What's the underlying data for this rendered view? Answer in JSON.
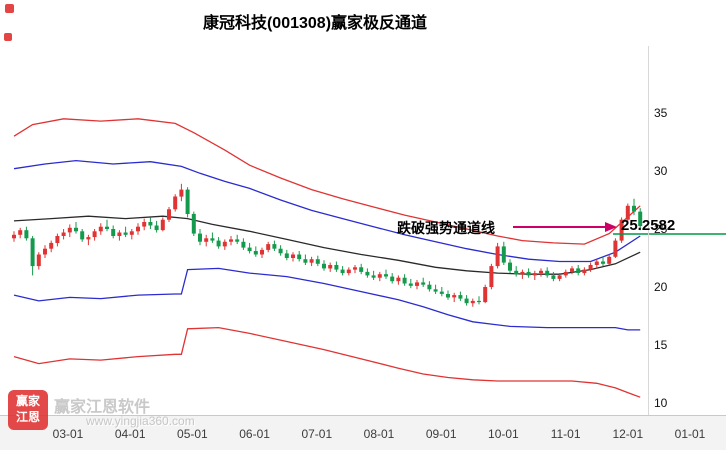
{
  "window": {
    "title": "康冠科技(001308)赢家极反通道"
  },
  "annotation": {
    "label": "跌破强势通道线",
    "price": "25.2582"
  },
  "watermark": {
    "brand": "赢家江恩软件",
    "site": "www.yingjia360.com",
    "logo_top": "赢家",
    "logo_bottom": "江恩"
  },
  "chart_data": {
    "type": "candlestick",
    "title": "康冠科技(001308)赢家极反通道",
    "stock_name": "康冠科技",
    "symbol": "001308",
    "indicator": "赢家极反通道",
    "x_tick_labels": [
      "03-01",
      "04-01",
      "05-01",
      "06-01",
      "07-01",
      "08-01",
      "09-01",
      "10-01",
      "11-01",
      "12-01",
      "01-01"
    ],
    "y_tick_labels": [
      35,
      30,
      25,
      20,
      15,
      10
    ],
    "ylim": [
      9,
      36.5
    ],
    "grid": false,
    "legend": "none",
    "current_price": 25.2582,
    "colors": {
      "up": "#e03333",
      "down": "#149a4c",
      "channel_outer": "#e03333",
      "channel_inner": "#2b2bd0",
      "channel_mid": "#2a2a2a",
      "current_price_line": "#009944",
      "annotation_arrow": "#cc0066"
    },
    "candles": [
      [
        24.2,
        24.8,
        23.9,
        24.5
      ],
      [
        24.5,
        25.1,
        24.2,
        24.9
      ],
      [
        24.9,
        25.2,
        24.0,
        24.2
      ],
      [
        24.2,
        24.4,
        21.0,
        21.8
      ],
      [
        21.8,
        23.0,
        21.5,
        22.8
      ],
      [
        22.8,
        23.6,
        22.5,
        23.3
      ],
      [
        23.3,
        24.0,
        23.0,
        23.8
      ],
      [
        23.8,
        24.6,
        23.5,
        24.4
      ],
      [
        24.4,
        25.0,
        24.1,
        24.7
      ],
      [
        24.7,
        25.4,
        24.3,
        25.1
      ],
      [
        25.1,
        25.6,
        24.6,
        24.8
      ],
      [
        24.8,
        25.0,
        23.9,
        24.1
      ],
      [
        24.1,
        24.5,
        23.6,
        24.3
      ],
      [
        24.3,
        25.0,
        24.0,
        24.8
      ],
      [
        24.8,
        25.5,
        24.5,
        25.2
      ],
      [
        25.2,
        25.8,
        24.8,
        25.0
      ],
      [
        25.0,
        25.3,
        24.2,
        24.4
      ],
      [
        24.4,
        24.9,
        24.0,
        24.7
      ],
      [
        24.7,
        25.2,
        24.3,
        24.5
      ],
      [
        24.5,
        25.0,
        24.1,
        24.8
      ],
      [
        24.8,
        25.5,
        24.5,
        25.2
      ],
      [
        25.2,
        25.9,
        24.9,
        25.6
      ],
      [
        25.6,
        26.0,
        25.0,
        25.3
      ],
      [
        25.3,
        25.7,
        24.7,
        24.9
      ],
      [
        24.9,
        26.0,
        24.8,
        25.8
      ],
      [
        25.8,
        26.9,
        25.6,
        26.7
      ],
      [
        26.7,
        28.0,
        26.5,
        27.8
      ],
      [
        27.8,
        28.9,
        27.4,
        28.4
      ],
      [
        28.4,
        28.6,
        26.0,
        26.3
      ],
      [
        26.3,
        26.5,
        24.4,
        24.6
      ],
      [
        24.6,
        25.0,
        23.6,
        23.9
      ],
      [
        23.9,
        24.5,
        23.5,
        24.2
      ],
      [
        24.2,
        24.7,
        23.8,
        24.0
      ],
      [
        24.0,
        24.3,
        23.3,
        23.5
      ],
      [
        23.5,
        24.1,
        23.2,
        23.9
      ],
      [
        23.9,
        24.4,
        23.6,
        24.1
      ],
      [
        24.1,
        24.5,
        23.7,
        23.9
      ],
      [
        23.9,
        24.2,
        23.2,
        23.4
      ],
      [
        23.4,
        23.8,
        22.9,
        23.1
      ],
      [
        23.1,
        23.5,
        22.6,
        22.8
      ],
      [
        22.8,
        23.4,
        22.5,
        23.2
      ],
      [
        23.2,
        23.9,
        23.0,
        23.7
      ],
      [
        23.7,
        24.0,
        23.1,
        23.3
      ],
      [
        23.3,
        23.6,
        22.7,
        22.9
      ],
      [
        22.9,
        23.2,
        22.3,
        22.5
      ],
      [
        22.5,
        23.0,
        22.2,
        22.8
      ],
      [
        22.8,
        23.1,
        22.2,
        22.4
      ],
      [
        22.4,
        22.8,
        21.9,
        22.1
      ],
      [
        22.1,
        22.6,
        21.8,
        22.4
      ],
      [
        22.4,
        22.7,
        21.8,
        22.0
      ],
      [
        22.0,
        22.3,
        21.4,
        21.6
      ],
      [
        21.6,
        22.1,
        21.3,
        21.9
      ],
      [
        21.9,
        22.2,
        21.3,
        21.5
      ],
      [
        21.5,
        21.8,
        21.0,
        21.2
      ],
      [
        21.2,
        21.7,
        21.0,
        21.5
      ],
      [
        21.5,
        21.9,
        21.2,
        21.7
      ],
      [
        21.7,
        22.0,
        21.1,
        21.3
      ],
      [
        21.3,
        21.6,
        20.8,
        21.0
      ],
      [
        21.0,
        21.4,
        20.6,
        20.8
      ],
      [
        20.8,
        21.3,
        20.5,
        21.1
      ],
      [
        21.1,
        21.5,
        20.7,
        20.9
      ],
      [
        20.9,
        21.2,
        20.3,
        20.5
      ],
      [
        20.5,
        21.0,
        20.2,
        20.8
      ],
      [
        20.8,
        21.1,
        20.1,
        20.3
      ],
      [
        20.3,
        20.7,
        19.9,
        20.1
      ],
      [
        20.1,
        20.6,
        19.8,
        20.4
      ],
      [
        20.4,
        20.8,
        20.0,
        20.2
      ],
      [
        20.2,
        20.5,
        19.6,
        19.8
      ],
      [
        19.8,
        20.2,
        19.4,
        19.6
      ],
      [
        19.6,
        20.0,
        19.2,
        19.4
      ],
      [
        19.4,
        19.7,
        18.9,
        19.1
      ],
      [
        19.1,
        19.5,
        18.7,
        19.3
      ],
      [
        19.3,
        19.6,
        18.8,
        19.0
      ],
      [
        19.0,
        19.3,
        18.4,
        18.6
      ],
      [
        18.6,
        19.0,
        18.3,
        18.8
      ],
      [
        18.8,
        19.2,
        18.5,
        18.7
      ],
      [
        18.7,
        20.2,
        18.6,
        20.0
      ],
      [
        20.0,
        22.0,
        19.8,
        21.8
      ],
      [
        21.8,
        23.8,
        21.6,
        23.5
      ],
      [
        23.5,
        23.9,
        21.9,
        22.1
      ],
      [
        22.1,
        22.4,
        21.2,
        21.4
      ],
      [
        21.4,
        21.8,
        20.9,
        21.1
      ],
      [
        21.1,
        21.5,
        20.7,
        21.3
      ],
      [
        21.3,
        21.6,
        20.8,
        21.0
      ],
      [
        21.0,
        21.4,
        20.6,
        21.2
      ],
      [
        21.2,
        21.6,
        20.9,
        21.4
      ],
      [
        21.4,
        21.7,
        20.8,
        21.0
      ],
      [
        21.0,
        21.3,
        20.5,
        20.7
      ],
      [
        20.7,
        21.2,
        20.5,
        21.0
      ],
      [
        21.0,
        21.5,
        20.8,
        21.3
      ],
      [
        21.3,
        21.8,
        21.1,
        21.6
      ],
      [
        21.6,
        21.9,
        21.0,
        21.2
      ],
      [
        21.2,
        21.7,
        21.0,
        21.5
      ],
      [
        21.5,
        22.1,
        21.3,
        21.9
      ],
      [
        21.9,
        22.4,
        21.6,
        22.2
      ],
      [
        22.2,
        22.6,
        21.8,
        22.0
      ],
      [
        22.0,
        22.8,
        21.9,
        22.6
      ],
      [
        22.6,
        24.2,
        22.5,
        24.0
      ],
      [
        24.0,
        26.0,
        23.8,
        25.8
      ],
      [
        25.8,
        27.2,
        25.5,
        27.0
      ],
      [
        27.0,
        27.6,
        26.2,
        26.5
      ],
      [
        26.5,
        26.8,
        24.9,
        25.26
      ]
    ],
    "channel_lines": [
      {
        "name": "upper-outer-red",
        "color": "#e03333",
        "points": [
          [
            0,
            33.0
          ],
          [
            3,
            34.0
          ],
          [
            8,
            34.5
          ],
          [
            14,
            34.3
          ],
          [
            20,
            34.5
          ],
          [
            26,
            34.1
          ],
          [
            29,
            33.3
          ],
          [
            34,
            31.8
          ],
          [
            38,
            30.5
          ],
          [
            43,
            29.4
          ],
          [
            48,
            28.4
          ],
          [
            53,
            27.6
          ],
          [
            58,
            26.9
          ],
          [
            63,
            26.2
          ],
          [
            68,
            25.6
          ],
          [
            73,
            25.0
          ],
          [
            78,
            24.4
          ],
          [
            82,
            24.0
          ],
          [
            87,
            23.8
          ],
          [
            92,
            23.7
          ],
          [
            96,
            24.6
          ],
          [
            101,
            27.0
          ]
        ]
      },
      {
        "name": "upper-inner-blue",
        "color": "#2b2bd0",
        "points": [
          [
            0,
            30.2
          ],
          [
            5,
            30.6
          ],
          [
            10,
            30.9
          ],
          [
            16,
            30.6
          ],
          [
            22,
            30.8
          ],
          [
            27,
            30.4
          ],
          [
            30,
            29.8
          ],
          [
            34,
            29.1
          ],
          [
            38,
            28.5
          ],
          [
            43,
            27.5
          ],
          [
            48,
            26.6
          ],
          [
            53,
            25.9
          ],
          [
            58,
            25.2
          ],
          [
            63,
            24.5
          ],
          [
            68,
            23.9
          ],
          [
            73,
            23.3
          ],
          [
            78,
            22.8
          ],
          [
            83,
            22.4
          ],
          [
            88,
            22.2
          ],
          [
            93,
            22.2
          ],
          [
            97,
            23.0
          ],
          [
            101,
            24.4
          ]
        ]
      },
      {
        "name": "middle-black",
        "color": "#2a2a2a",
        "points": [
          [
            0,
            25.7
          ],
          [
            6,
            25.9
          ],
          [
            12,
            26.1
          ],
          [
            18,
            25.9
          ],
          [
            24,
            26.1
          ],
          [
            28,
            25.9
          ],
          [
            32,
            25.4
          ],
          [
            38,
            24.8
          ],
          [
            44,
            24.1
          ],
          [
            50,
            23.4
          ],
          [
            56,
            22.8
          ],
          [
            62,
            22.3
          ],
          [
            68,
            21.7
          ],
          [
            73,
            21.4
          ],
          [
            78,
            21.2
          ],
          [
            83,
            21.1
          ],
          [
            88,
            21.1
          ],
          [
            93,
            21.5
          ],
          [
            97,
            22.0
          ],
          [
            101,
            23.0
          ]
        ]
      },
      {
        "name": "lower-inner-blue",
        "color": "#2b2bd0",
        "points": [
          [
            0,
            19.3
          ],
          [
            4,
            18.8
          ],
          [
            9,
            19.1
          ],
          [
            14,
            19.0
          ],
          [
            20,
            19.3
          ],
          [
            26,
            19.4
          ],
          [
            27,
            19.4
          ],
          [
            28,
            21.5
          ],
          [
            33,
            21.6
          ],
          [
            38,
            21.2
          ],
          [
            44,
            20.9
          ],
          [
            50,
            20.3
          ],
          [
            56,
            19.6
          ],
          [
            62,
            18.9
          ],
          [
            66,
            18.3
          ],
          [
            70,
            17.6
          ],
          [
            74,
            17.0
          ],
          [
            77,
            16.8
          ],
          [
            80,
            16.6
          ],
          [
            86,
            16.5
          ],
          [
            92,
            16.5
          ],
          [
            97,
            16.5
          ],
          [
            99,
            16.3
          ],
          [
            101,
            16.3
          ]
        ]
      },
      {
        "name": "lower-outer-red",
        "color": "#e03333",
        "points": [
          [
            0,
            14.0
          ],
          [
            4,
            13.4
          ],
          [
            9,
            13.8
          ],
          [
            14,
            13.7
          ],
          [
            20,
            14.0
          ],
          [
            26,
            14.2
          ],
          [
            27,
            14.2
          ],
          [
            28,
            16.4
          ],
          [
            33,
            16.5
          ],
          [
            38,
            16.0
          ],
          [
            44,
            15.3
          ],
          [
            50,
            14.6
          ],
          [
            56,
            13.8
          ],
          [
            62,
            13.0
          ],
          [
            66,
            12.5
          ],
          [
            70,
            12.2
          ],
          [
            74,
            12.0
          ],
          [
            78,
            11.9
          ],
          [
            84,
            11.9
          ],
          [
            90,
            11.9
          ],
          [
            94,
            11.7
          ],
          [
            97,
            11.3
          ],
          [
            99,
            10.9
          ],
          [
            101,
            10.5
          ]
        ]
      }
    ]
  }
}
